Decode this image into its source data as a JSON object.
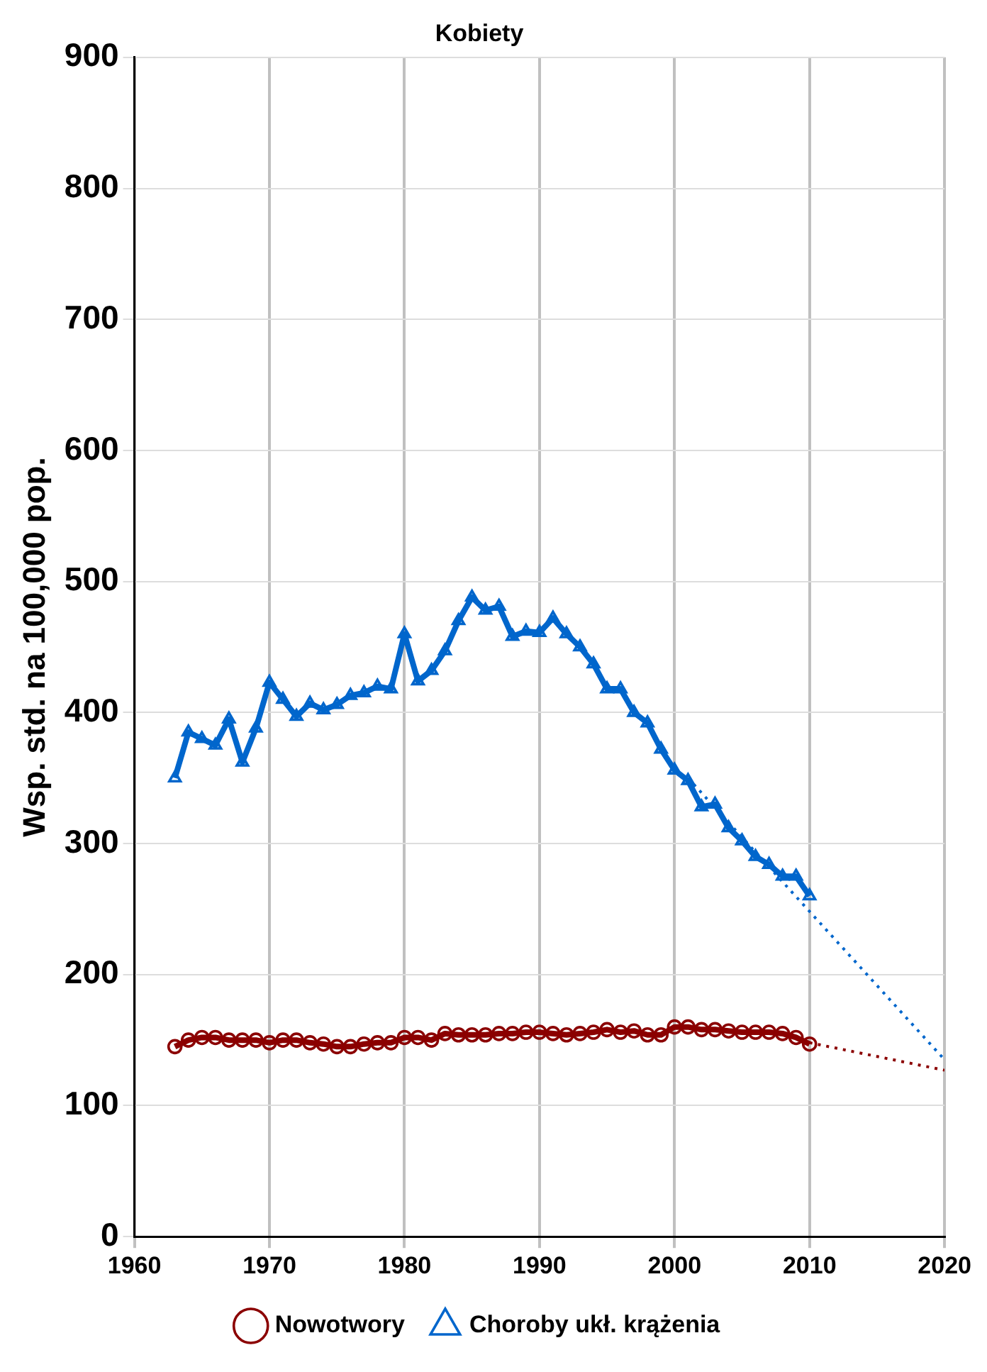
{
  "chart_data": {
    "type": "line",
    "title": "Kobiety",
    "ylabel": "Wsp. std. na 100,000 pop.",
    "xlim": [
      1960,
      2020
    ],
    "xticks": [
      1960,
      1970,
      1980,
      1990,
      2000,
      2010,
      2020
    ],
    "ylim": [
      0,
      900
    ],
    "yticks": [
      0,
      100,
      200,
      300,
      400,
      500,
      600,
      700,
      800,
      900
    ],
    "grid": true,
    "legend": "bottom",
    "series": [
      {
        "name": "Nowotwory",
        "color": "#8b0000",
        "marker": "circle",
        "line_style": "solid",
        "x": [
          1963,
          1964,
          1965,
          1966,
          1967,
          1968,
          1969,
          1970,
          1971,
          1972,
          1973,
          1974,
          1975,
          1976,
          1977,
          1978,
          1979,
          1980,
          1981,
          1982,
          1983,
          1984,
          1985,
          1986,
          1987,
          1988,
          1989,
          1990,
          1991,
          1992,
          1993,
          1994,
          1995,
          1996,
          1997,
          1998,
          1999,
          2000,
          2001,
          2002,
          2003,
          2004,
          2005,
          2006,
          2007,
          2008,
          2009,
          2010
        ],
        "values": [
          145,
          150,
          152,
          152,
          150,
          150,
          150,
          148,
          150,
          150,
          148,
          147,
          145,
          145,
          147,
          148,
          148,
          152,
          152,
          150,
          155,
          154,
          154,
          154,
          155,
          155,
          156,
          156,
          155,
          154,
          155,
          156,
          158,
          156,
          157,
          154,
          154,
          160,
          160,
          158,
          158,
          157,
          156,
          156,
          156,
          155,
          152,
          147
        ]
      },
      {
        "name": "Choroby ukł. krążenia",
        "color": "#0066cc",
        "marker": "triangle",
        "line_style": "solid",
        "x": [
          1963,
          1964,
          1965,
          1966,
          1967,
          1968,
          1969,
          1970,
          1971,
          1972,
          1973,
          1974,
          1975,
          1976,
          1977,
          1978,
          1979,
          1980,
          1981,
          1982,
          1983,
          1984,
          1985,
          1986,
          1987,
          1988,
          1989,
          1990,
          1991,
          1992,
          1993,
          1994,
          1995,
          1996,
          1997,
          1998,
          1999,
          2000,
          2001,
          2002,
          2003,
          2004,
          2005,
          2006,
          2007,
          2008,
          2009,
          2010
        ],
        "values": [
          350,
          385,
          380,
          375,
          395,
          362,
          388,
          423,
          410,
          397,
          407,
          402,
          406,
          413,
          415,
          420,
          418,
          460,
          424,
          432,
          447,
          470,
          488,
          478,
          481,
          458,
          462,
          461,
          472,
          460,
          450,
          437,
          418,
          418,
          400,
          392,
          372,
          356,
          348,
          328,
          330,
          312,
          302,
          290,
          284,
          275,
          275,
          260
        ]
      },
      {
        "type": "line",
        "color": "#8b0000",
        "marker": "none",
        "line_style": "dotted",
        "x": [
          2010,
          2020
        ],
        "values": [
          148,
          127
        ]
      },
      {
        "type": "line",
        "color": "#0066cc",
        "marker": "none",
        "line_style": "dotted",
        "x": [
          2001,
          2020
        ],
        "values": [
          350,
          135
        ]
      }
    ]
  }
}
